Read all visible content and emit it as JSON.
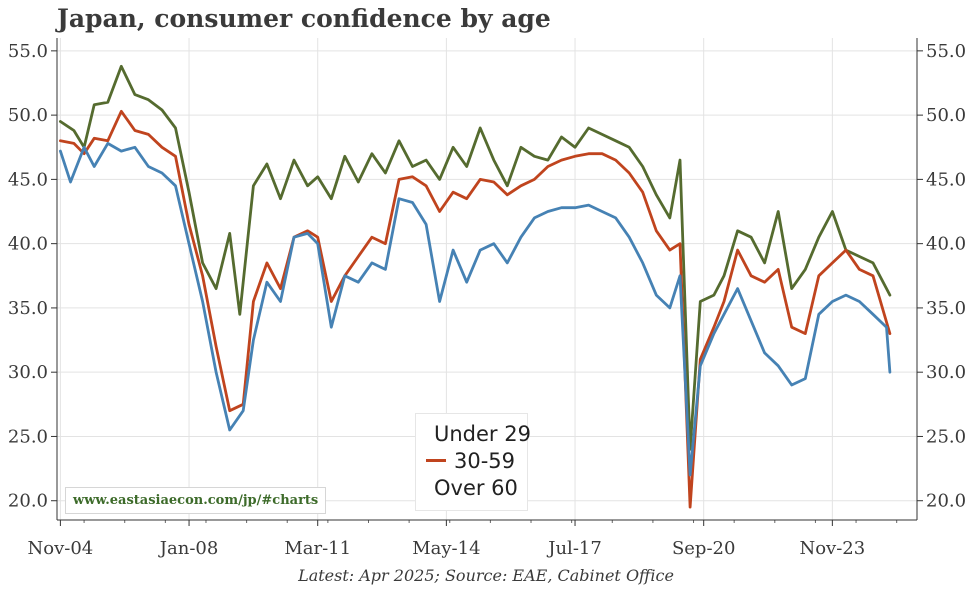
{
  "chart_data": {
    "type": "line",
    "title": "Japan, consumer confidence by age",
    "footnote": "Latest: Apr 2025; Source: EAE, Cabinet Office",
    "watermark": "www.eastasiaecon.com/jp/#charts",
    "x_tick_labels": [
      "Nov-04",
      "Jan-08",
      "Mar-11",
      "May-14",
      "Jul-17",
      "Sep-20",
      "Nov-23"
    ],
    "y_tick_labels": [
      "20.0",
      "25.0",
      "30.0",
      "35.0",
      "40.0",
      "45.0",
      "50.0",
      "55.0"
    ],
    "ylim": [
      18.5,
      56
    ],
    "xlim": [
      "2004-10",
      "2025-12"
    ],
    "grid": true,
    "legend_position": "bottom-center",
    "series": [
      {
        "name": "Under 29",
        "color": "#556b2f",
        "points": [
          [
            "2004-11",
            49.5
          ],
          [
            "2005-03",
            48.8
          ],
          [
            "2005-06",
            47.5
          ],
          [
            "2005-09",
            50.8
          ],
          [
            "2006-01",
            51.0
          ],
          [
            "2006-05",
            53.8
          ],
          [
            "2006-09",
            51.6
          ],
          [
            "2007-01",
            51.2
          ],
          [
            "2007-05",
            50.4
          ],
          [
            "2007-09",
            49.0
          ],
          [
            "2008-01",
            44.0
          ],
          [
            "2008-05",
            38.5
          ],
          [
            "2008-09",
            36.5
          ],
          [
            "2009-01",
            40.8
          ],
          [
            "2009-04",
            34.5
          ],
          [
            "2009-08",
            44.5
          ],
          [
            "2009-12",
            46.2
          ],
          [
            "2010-04",
            43.5
          ],
          [
            "2010-08",
            46.5
          ],
          [
            "2010-12",
            44.5
          ],
          [
            "2011-03",
            45.2
          ],
          [
            "2011-07",
            43.5
          ],
          [
            "2011-11",
            46.8
          ],
          [
            "2012-03",
            44.8
          ],
          [
            "2012-07",
            47.0
          ],
          [
            "2012-11",
            45.5
          ],
          [
            "2013-03",
            48.0
          ],
          [
            "2013-07",
            46.0
          ],
          [
            "2013-11",
            46.5
          ],
          [
            "2014-03",
            45.0
          ],
          [
            "2014-07",
            47.5
          ],
          [
            "2014-11",
            46.0
          ],
          [
            "2015-03",
            49.0
          ],
          [
            "2015-07",
            46.5
          ],
          [
            "2015-11",
            44.5
          ],
          [
            "2016-03",
            47.5
          ],
          [
            "2016-07",
            46.8
          ],
          [
            "2016-11",
            46.5
          ],
          [
            "2017-03",
            48.3
          ],
          [
            "2017-07",
            47.5
          ],
          [
            "2017-11",
            49.0
          ],
          [
            "2018-03",
            48.5
          ],
          [
            "2018-07",
            48.0
          ],
          [
            "2018-11",
            47.5
          ],
          [
            "2019-03",
            46.0
          ],
          [
            "2019-07",
            43.8
          ],
          [
            "2019-11",
            42.0
          ],
          [
            "2020-02",
            46.5
          ],
          [
            "2020-05",
            24.0
          ],
          [
            "2020-08",
            35.5
          ],
          [
            "2020-12",
            36.0
          ],
          [
            "2021-03",
            37.5
          ],
          [
            "2021-07",
            41.0
          ],
          [
            "2021-11",
            40.5
          ],
          [
            "2022-03",
            38.5
          ],
          [
            "2022-07",
            42.5
          ],
          [
            "2022-11",
            36.5
          ],
          [
            "2023-03",
            38.0
          ],
          [
            "2023-07",
            40.5
          ],
          [
            "2023-11",
            42.5
          ],
          [
            "2024-03",
            39.5
          ],
          [
            "2024-07",
            39.0
          ],
          [
            "2024-11",
            38.5
          ],
          [
            "2025-04",
            36.0
          ]
        ]
      },
      {
        "name": "30-59",
        "color": "#c0441e",
        "points": [
          [
            "2004-11",
            48.0
          ],
          [
            "2005-03",
            47.8
          ],
          [
            "2005-06",
            47.0
          ],
          [
            "2005-09",
            48.2
          ],
          [
            "2006-01",
            48.0
          ],
          [
            "2006-05",
            50.3
          ],
          [
            "2006-09",
            48.8
          ],
          [
            "2007-01",
            48.5
          ],
          [
            "2007-05",
            47.5
          ],
          [
            "2007-09",
            46.8
          ],
          [
            "2008-01",
            41.5
          ],
          [
            "2008-05",
            37.5
          ],
          [
            "2008-09",
            32.0
          ],
          [
            "2009-01",
            27.0
          ],
          [
            "2009-05",
            27.5
          ],
          [
            "2009-08",
            35.5
          ],
          [
            "2009-12",
            38.5
          ],
          [
            "2010-04",
            36.5
          ],
          [
            "2010-08",
            40.5
          ],
          [
            "2010-12",
            41.0
          ],
          [
            "2011-03",
            40.5
          ],
          [
            "2011-07",
            35.5
          ],
          [
            "2011-11",
            37.5
          ],
          [
            "2012-03",
            39.0
          ],
          [
            "2012-07",
            40.5
          ],
          [
            "2012-11",
            40.0
          ],
          [
            "2013-03",
            45.0
          ],
          [
            "2013-07",
            45.2
          ],
          [
            "2013-11",
            44.5
          ],
          [
            "2014-03",
            42.5
          ],
          [
            "2014-07",
            44.0
          ],
          [
            "2014-11",
            43.5
          ],
          [
            "2015-03",
            45.0
          ],
          [
            "2015-07",
            44.8
          ],
          [
            "2015-11",
            43.8
          ],
          [
            "2016-03",
            44.5
          ],
          [
            "2016-07",
            45.0
          ],
          [
            "2016-11",
            46.0
          ],
          [
            "2017-03",
            46.5
          ],
          [
            "2017-07",
            46.8
          ],
          [
            "2017-11",
            47.0
          ],
          [
            "2018-03",
            47.0
          ],
          [
            "2018-07",
            46.5
          ],
          [
            "2018-11",
            45.5
          ],
          [
            "2019-03",
            44.0
          ],
          [
            "2019-07",
            41.0
          ],
          [
            "2019-11",
            39.5
          ],
          [
            "2020-02",
            40.0
          ],
          [
            "2020-05",
            19.5
          ],
          [
            "2020-08",
            31.0
          ],
          [
            "2020-12",
            33.5
          ],
          [
            "2021-03",
            35.5
          ],
          [
            "2021-07",
            39.5
          ],
          [
            "2021-11",
            37.5
          ],
          [
            "2022-03",
            37.0
          ],
          [
            "2022-07",
            38.0
          ],
          [
            "2022-11",
            33.5
          ],
          [
            "2023-03",
            33.0
          ],
          [
            "2023-07",
            37.5
          ],
          [
            "2023-11",
            38.5
          ],
          [
            "2024-03",
            39.5
          ],
          [
            "2024-07",
            38.0
          ],
          [
            "2024-11",
            37.5
          ],
          [
            "2025-04",
            33.0
          ]
        ]
      },
      {
        "name": "Over 60",
        "color": "#4682b4",
        "points": [
          [
            "2004-11",
            47.2
          ],
          [
            "2005-02",
            44.8
          ],
          [
            "2005-06",
            47.5
          ],
          [
            "2005-09",
            46.0
          ],
          [
            "2006-01",
            47.8
          ],
          [
            "2006-05",
            47.2
          ],
          [
            "2006-09",
            47.5
          ],
          [
            "2007-01",
            46.0
          ],
          [
            "2007-05",
            45.5
          ],
          [
            "2007-09",
            44.5
          ],
          [
            "2008-01",
            40.0
          ],
          [
            "2008-05",
            35.5
          ],
          [
            "2008-09",
            30.0
          ],
          [
            "2009-01",
            25.5
          ],
          [
            "2009-05",
            27.0
          ],
          [
            "2009-08",
            32.5
          ],
          [
            "2009-12",
            37.0
          ],
          [
            "2010-04",
            35.5
          ],
          [
            "2010-08",
            40.5
          ],
          [
            "2010-12",
            40.8
          ],
          [
            "2011-03",
            40.0
          ],
          [
            "2011-07",
            33.5
          ],
          [
            "2011-11",
            37.5
          ],
          [
            "2012-03",
            37.0
          ],
          [
            "2012-07",
            38.5
          ],
          [
            "2012-11",
            38.0
          ],
          [
            "2013-03",
            43.5
          ],
          [
            "2013-07",
            43.2
          ],
          [
            "2013-11",
            41.5
          ],
          [
            "2014-03",
            35.5
          ],
          [
            "2014-07",
            39.5
          ],
          [
            "2014-11",
            37.0
          ],
          [
            "2015-03",
            39.5
          ],
          [
            "2015-07",
            40.0
          ],
          [
            "2015-11",
            38.5
          ],
          [
            "2016-03",
            40.5
          ],
          [
            "2016-07",
            42.0
          ],
          [
            "2016-11",
            42.5
          ],
          [
            "2017-03",
            42.8
          ],
          [
            "2017-07",
            42.8
          ],
          [
            "2017-11",
            43.0
          ],
          [
            "2018-03",
            42.5
          ],
          [
            "2018-07",
            42.0
          ],
          [
            "2018-11",
            40.5
          ],
          [
            "2019-03",
            38.5
          ],
          [
            "2019-07",
            36.0
          ],
          [
            "2019-11",
            35.0
          ],
          [
            "2020-02",
            37.5
          ],
          [
            "2020-05",
            22.0
          ],
          [
            "2020-08",
            30.5
          ],
          [
            "2020-12",
            33.0
          ],
          [
            "2021-03",
            34.5
          ],
          [
            "2021-07",
            36.5
          ],
          [
            "2021-11",
            34.0
          ],
          [
            "2022-03",
            31.5
          ],
          [
            "2022-07",
            30.5
          ],
          [
            "2022-11",
            29.0
          ],
          [
            "2023-03",
            29.5
          ],
          [
            "2023-07",
            34.5
          ],
          [
            "2023-11",
            35.5
          ],
          [
            "2024-03",
            36.0
          ],
          [
            "2024-07",
            35.5
          ],
          [
            "2024-11",
            34.5
          ],
          [
            "2025-03",
            33.5
          ],
          [
            "2025-04",
            30.0
          ]
        ]
      }
    ]
  }
}
